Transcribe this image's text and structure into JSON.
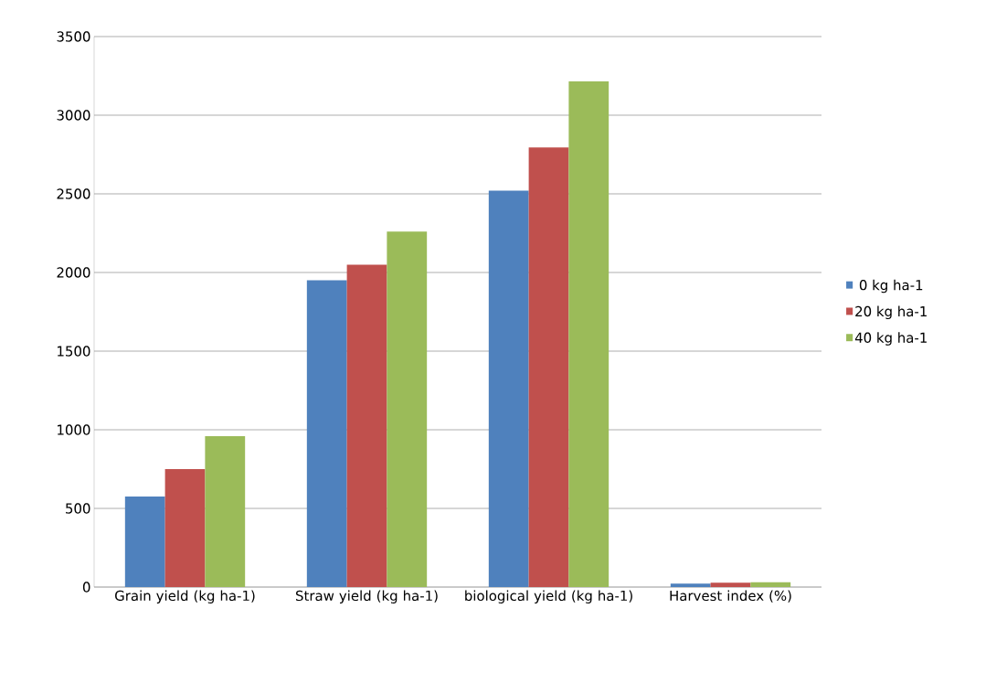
{
  "chart_data": {
    "type": "bar",
    "categories": [
      "Grain yield (kg ha-1)",
      "Straw yield (kg ha-1)",
      "biological yield (kg ha-1)",
      "Harvest index (%)"
    ],
    "series": [
      {
        "name": "0 kg ha-1",
        "color": "#4f81bd",
        "values": [
          575,
          1950,
          2520,
          22
        ]
      },
      {
        "name": "20 kg ha-1",
        "color": "#c0504d",
        "values": [
          750,
          2050,
          2795,
          27
        ]
      },
      {
        "name": "40 kg ha-1",
        "color": "#9bbb59",
        "values": [
          960,
          2260,
          3215,
          30
        ]
      }
    ],
    "ylim": [
      0,
      3500
    ],
    "yticks": [
      0,
      500,
      1000,
      1500,
      2000,
      2500,
      3000,
      3500
    ],
    "grid": "y",
    "legend": "right"
  }
}
